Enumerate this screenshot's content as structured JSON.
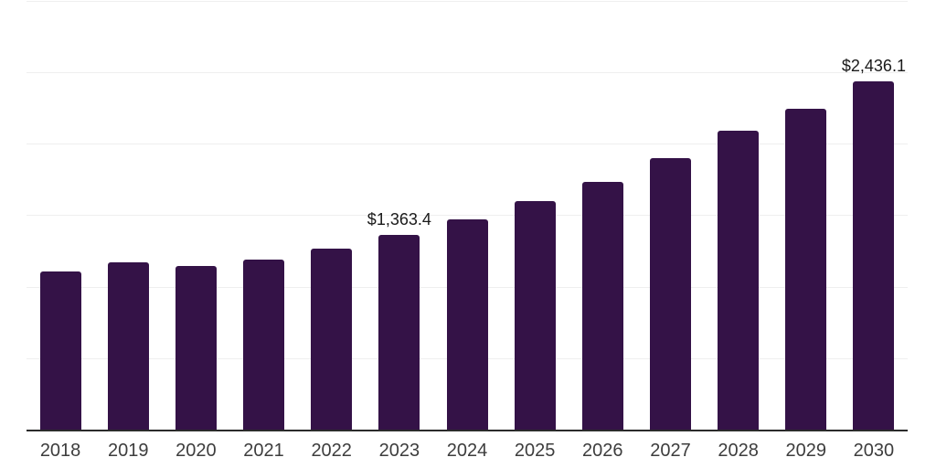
{
  "chart_title": "",
  "colors": {
    "bar": "#341247",
    "gridline": "#efefef",
    "axis": "#2b2b2b",
    "tick_label": "#3d3d3d",
    "data_label": "#1a1a1a",
    "background": "#ffffff"
  },
  "chart_data": {
    "type": "bar",
    "title": "",
    "xlabel": "",
    "ylabel": "",
    "categories": [
      "2018",
      "2019",
      "2020",
      "2021",
      "2022",
      "2023",
      "2024",
      "2025",
      "2026",
      "2027",
      "2028",
      "2029",
      "2030"
    ],
    "values": [
      1106,
      1171,
      1142,
      1191,
      1268,
      1363.4,
      1470,
      1598,
      1731,
      1901,
      2089,
      2244,
      2436.1
    ],
    "ylim": [
      0,
      3000
    ],
    "gridline_step": 500,
    "grid": true,
    "legend": false,
    "y_axis_labels_visible": false,
    "annotations": [
      {
        "index": 5,
        "text": "$1,363.4"
      },
      {
        "index": 12,
        "text": "$2,436.1"
      }
    ]
  }
}
